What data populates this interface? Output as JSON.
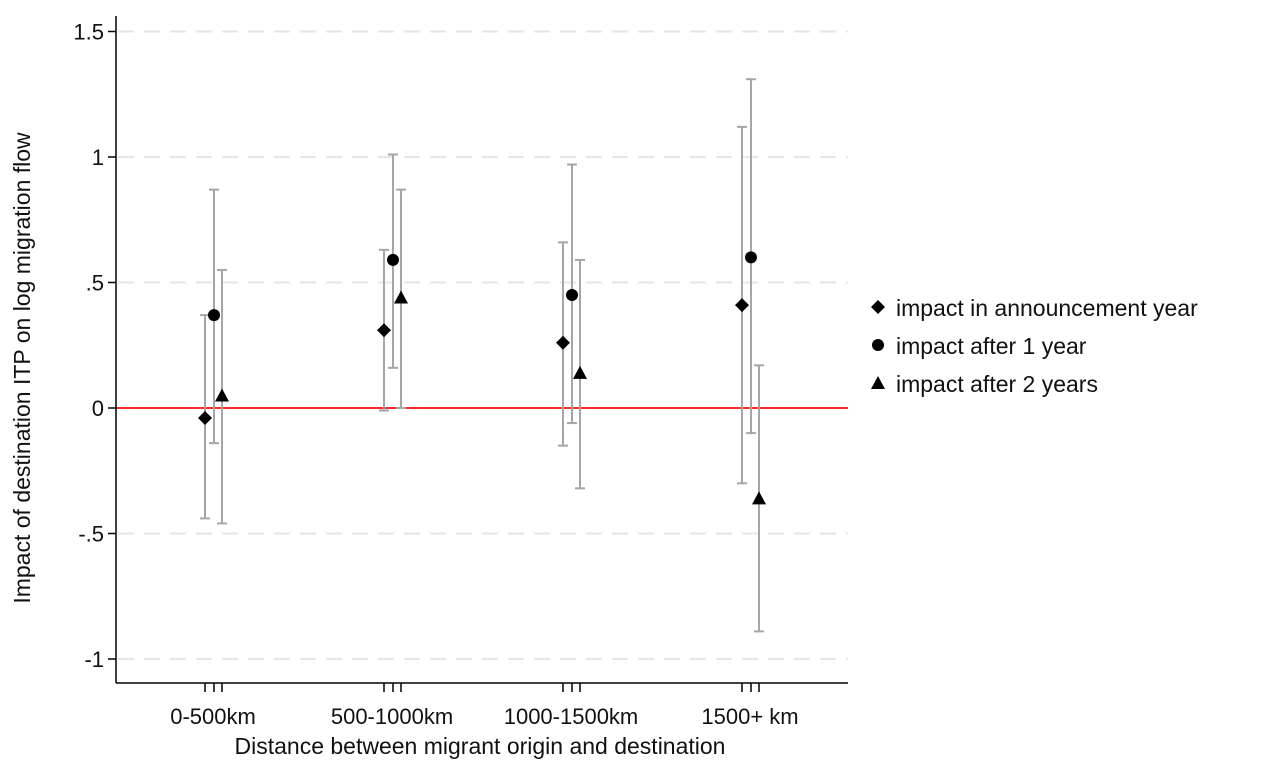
{
  "chart_data": {
    "type": "scatter",
    "subtype": "coefficient plot with 95% confidence intervals",
    "title": "",
    "xlabel": "Distance between migrant origin and destination",
    "ylabel": "Impact of destination ITP on log migration flow",
    "categories": [
      "0-500km",
      "500-1000km",
      "1000-1500km",
      "1500+ km"
    ],
    "ylim": [
      -1.1,
      1.55
    ],
    "yticks": [
      1.5,
      1,
      0.5,
      0,
      -0.5,
      -1
    ],
    "ytick_labels": [
      "1.5",
      "1",
      ".5",
      "0",
      "-.5",
      "-1"
    ],
    "grid": true,
    "reference_line": {
      "y": 0,
      "color": "#ff2a2a"
    },
    "legend_position": "right",
    "series": [
      {
        "name": "impact in announcement year",
        "marker": "diamond",
        "values": [
          -0.04,
          0.31,
          0.26,
          0.41
        ],
        "ci_low": [
          -0.44,
          -0.01,
          -0.15,
          -0.3
        ],
        "ci_high": [
          0.37,
          0.63,
          0.66,
          1.12
        ]
      },
      {
        "name": "impact after 1 year",
        "marker": "circle",
        "values": [
          0.37,
          0.59,
          0.45,
          0.6
        ],
        "ci_low": [
          -0.14,
          0.16,
          -0.06,
          -0.1
        ],
        "ci_high": [
          0.87,
          1.01,
          0.97,
          1.31
        ]
      },
      {
        "name": "impact after 2 years",
        "marker": "triangle",
        "values": [
          0.05,
          0.44,
          0.14,
          -0.36
        ],
        "ci_low": [
          -0.46,
          0.0,
          -0.32,
          -0.89
        ],
        "ci_high": [
          0.55,
          0.87,
          0.59,
          0.17
        ]
      }
    ],
    "colors": {
      "marker": "#000000",
      "ci": "#a6a6a6",
      "axis": "#000000",
      "grid": "#e6e6e6",
      "zero_line": "#ff2a2a"
    }
  }
}
